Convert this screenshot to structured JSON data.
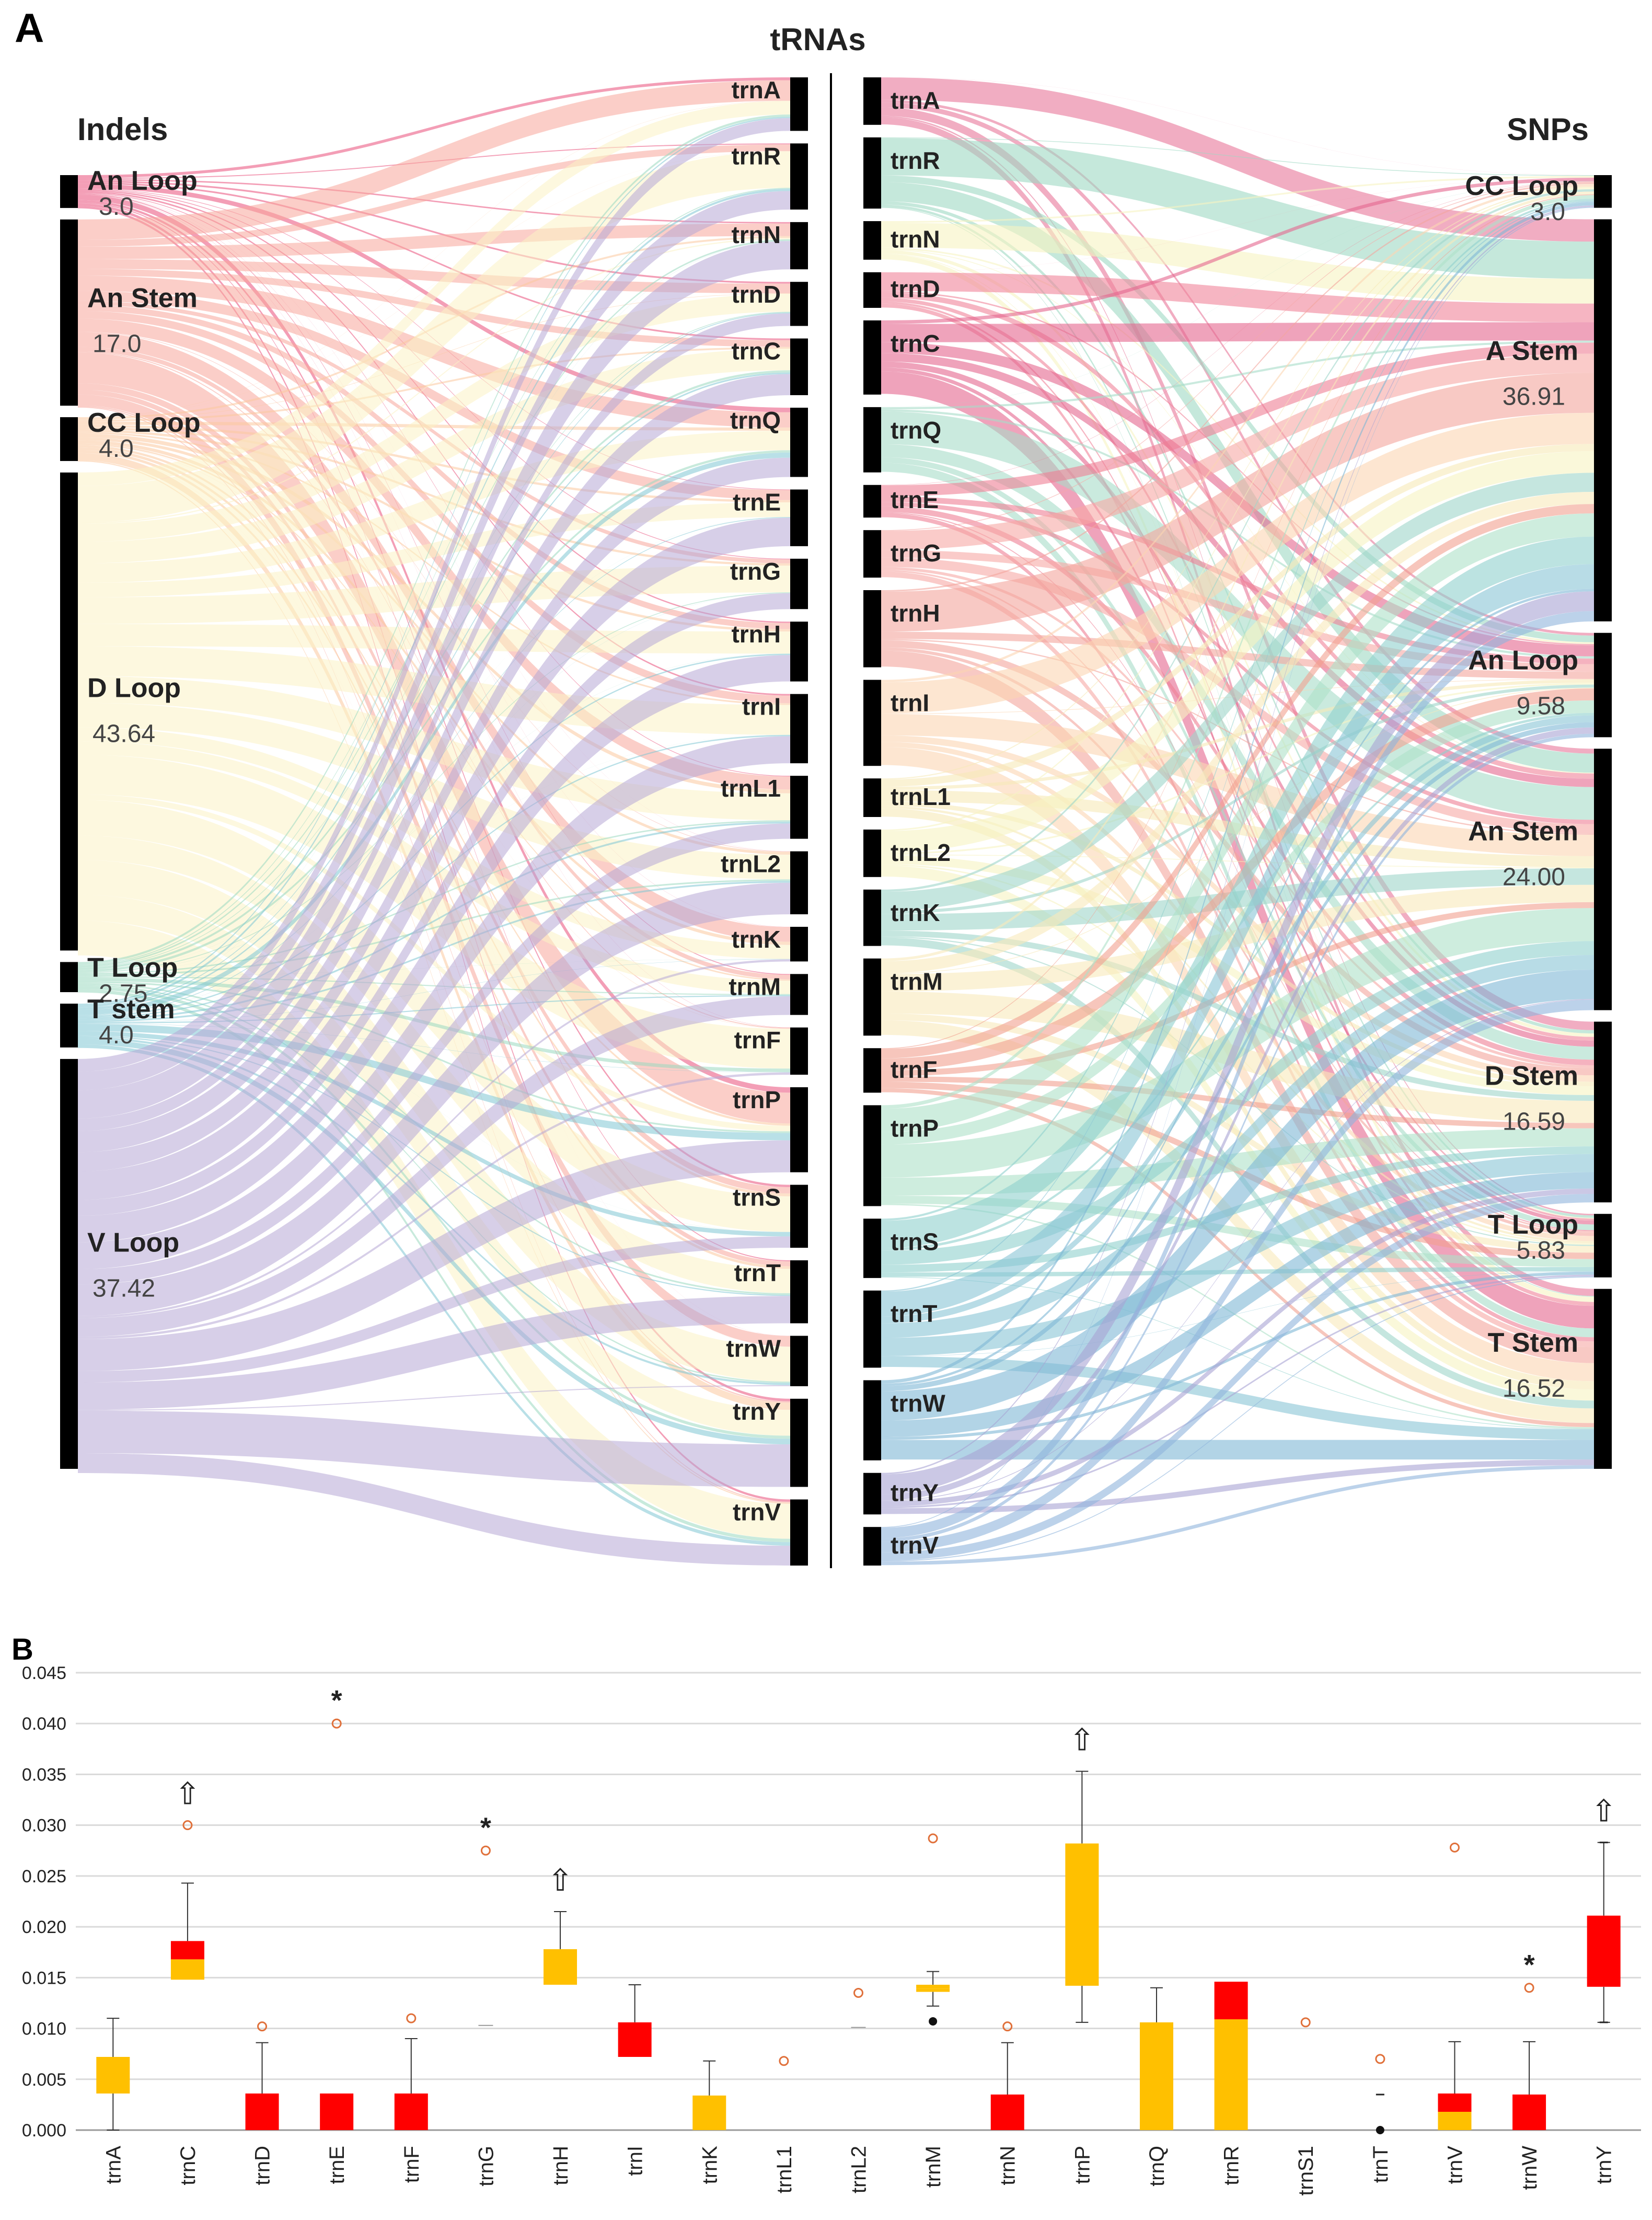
{
  "panel_a": {
    "letter": "A",
    "title_center": "tRNAs",
    "title_left": "Indels",
    "title_right": "SNPs"
  },
  "panel_b": {
    "letter": "B"
  },
  "colors": {
    "genes": {
      "trnA": "#e8779a",
      "trnR": "#9fd8c3",
      "trnN": "#f7f3c2",
      "trnD": "#f0839a",
      "trnC": "#e4668e",
      "trnQ": "#a6dcc8",
      "trnE": "#ef7f95",
      "trnG": "#f7a8a5",
      "trnH": "#f4a59c",
      "trnI": "#fbd6b2",
      "trnL1": "#f6e9b8",
      "trnL2": "#f7f3c2",
      "trnK": "#9fd6c9",
      "trnM": "#f8e9bb",
      "trnF": "#f2a08f",
      "trnP": "#ade1c8",
      "trnS": "#8fd0cd",
      "trnT": "#88c4d6",
      "trnW": "#7fb8d6",
      "trnY": "#a9a3d4",
      "trnV": "#8fb4dc"
    },
    "box_yellow": "#ffc000",
    "box_red": "#ff0000",
    "outlier": "#e0703a"
  },
  "chart_data": [
    {
      "type": "sankey",
      "title": "tRNAs",
      "left_title": "Indels",
      "right_title": "SNPs",
      "center_nodes_indels": [
        "trnA",
        "trnR",
        "trnN",
        "trnD",
        "trnC",
        "trnQ",
        "trnE",
        "trnG",
        "trnH",
        "trnI",
        "trnL1",
        "trnL2",
        "trnK",
        "trnM",
        "trnF",
        "trnP",
        "trnS",
        "trnT",
        "trnW",
        "trnY",
        "trnV"
      ],
      "center_weights_indels": [
        1.7,
        2.1,
        1.5,
        1.4,
        1.8,
        2.2,
        1.8,
        1.6,
        1.9,
        2.2,
        2.0,
        2.0,
        1.1,
        1.3,
        1.5,
        2.7,
        2.0,
        2.0,
        1.6,
        2.8,
        2.1
      ],
      "center_nodes_snps": [
        "trnA",
        "trnR",
        "trnN",
        "trnD",
        "trnC",
        "trnQ",
        "trnE",
        "trnG",
        "trnH",
        "trnI",
        "trnL1",
        "trnL2",
        "trnK",
        "trnM",
        "trnF",
        "trnP",
        "trnS",
        "trnT",
        "trnW",
        "trnY",
        "trnV"
      ],
      "center_weights_snps": [
        1.6,
        2.4,
        1.3,
        1.2,
        2.5,
        2.2,
        1.1,
        1.6,
        2.6,
        2.9,
        1.3,
        1.6,
        1.9,
        2.6,
        1.5,
        3.4,
        2.0,
        2.6,
        2.7,
        1.4,
        1.3
      ],
      "left_nodes": [
        {
          "label": "An Loop",
          "value": "3.0",
          "pct": 3.0,
          "color": "#e94f7a"
        },
        {
          "label": "An Stem",
          "value": "17.0",
          "pct": 17.0,
          "color": "#f8a69b"
        },
        {
          "label": "CC Loop",
          "value": "4.0",
          "pct": 4.0,
          "color": "#fbc89e"
        },
        {
          "label": "D Loop",
          "value": "43.64",
          "pct": 43.64,
          "color": "#fbf3c5"
        },
        {
          "label": "T Loop",
          "value": "2.75",
          "pct": 2.75,
          "color": "#9ad9c0"
        },
        {
          "label": "T stem",
          "value": "4.0",
          "pct": 4.0,
          "color": "#7fc7d3"
        },
        {
          "label": "V Loop",
          "value": "37.42",
          "pct": 37.42,
          "color": "#b6a7d6"
        }
      ],
      "right_nodes": [
        {
          "label": "CC Loop",
          "value": "3.0",
          "pct": 3.0,
          "color": "#7fb3d9"
        },
        {
          "label": "A Stem",
          "value": "36.91",
          "pct": 36.91,
          "color": "#fbd0a8"
        },
        {
          "label": "An Loop",
          "value": "9.58",
          "pct": 9.58,
          "color": "#e9628a"
        },
        {
          "label": "An Stem",
          "value": "24.00",
          "pct": 24.0,
          "color": "#f9b09e"
        },
        {
          "label": "D Stem",
          "value": "16.59",
          "pct": 16.59,
          "color": "#fbd8b1"
        },
        {
          "label": "T Loop",
          "value": "5.83",
          "pct": 5.83,
          "color": "#a5dac6"
        },
        {
          "label": "T Stem",
          "value": "16.52",
          "pct": 16.52,
          "color": "#9fb9dc"
        }
      ]
    },
    {
      "type": "box",
      "title": "",
      "xlabel": "",
      "ylabel": "",
      "ylim": [
        0,
        0.045
      ],
      "yticks": [
        0.0,
        0.005,
        0.01,
        0.015,
        0.02,
        0.025,
        0.03,
        0.035,
        0.04,
        0.045
      ],
      "ytick_labels": [
        "0.000",
        "0.005",
        "0.010",
        "0.015",
        "0.020",
        "0.025",
        "0.030",
        "0.035",
        "0.040",
        "0.045"
      ],
      "categories": [
        "trnA",
        "trnC",
        "trnD",
        "trnE",
        "trnF",
        "trnG",
        "trnH",
        "trnI",
        "trnK",
        "trnL1",
        "trnL2",
        "trnM",
        "trnN",
        "trnP",
        "trnQ",
        "trnR",
        "trnS1",
        "trnT",
        "trnV",
        "trnW",
        "trnY"
      ],
      "boxes": [
        {
          "q1": 0.0036,
          "median": 0.0072,
          "q3": 0.0072,
          "wlow": 0.0,
          "whigh": 0.011,
          "lower_color": "yellow",
          "upper_color": "yellow",
          "outliers": [],
          "mark": ""
        },
        {
          "q1": 0.0148,
          "median": 0.0168,
          "q3": 0.0186,
          "wlow": 0.0148,
          "whigh": 0.0243,
          "lower_color": "yellow",
          "upper_color": "red",
          "outliers": [
            0.03
          ],
          "mark": "arrow"
        },
        {
          "q1": 0.0,
          "median": 0.0036,
          "q3": 0.0036,
          "wlow": 0.0,
          "whigh": 0.0086,
          "lower_color": "red",
          "upper_color": "red",
          "outliers": [
            0.0102
          ],
          "mark": ""
        },
        {
          "q1": 0.0,
          "median": 0.0036,
          "q3": 0.0036,
          "wlow": 0.0,
          "whigh": 0.0,
          "lower_color": "red",
          "upper_color": "red",
          "outliers": [
            0.04
          ],
          "mark": "star"
        },
        {
          "q1": 0.0,
          "median": 0.0036,
          "q3": 0.0036,
          "wlow": 0.0,
          "whigh": 0.009,
          "lower_color": "red",
          "upper_color": "red",
          "outliers": [
            0.011
          ],
          "mark": ""
        },
        {
          "q1": 0.0103,
          "median": 0.0103,
          "q3": 0.0103,
          "wlow": 0.0103,
          "whigh": 0.0103,
          "lower_color": "yellow",
          "upper_color": "yellow",
          "outliers": [
            0.0275
          ],
          "mark": "star"
        },
        {
          "q1": 0.0143,
          "median": 0.0178,
          "q3": 0.0178,
          "wlow": 0.0143,
          "whigh": 0.0215,
          "lower_color": "yellow",
          "upper_color": "yellow",
          "outliers": [],
          "mark": "arrow"
        },
        {
          "q1": 0.0072,
          "median": 0.0106,
          "q3": 0.0106,
          "wlow": 0.0072,
          "whigh": 0.0143,
          "lower_color": "red",
          "upper_color": "red",
          "outliers": [],
          "mark": ""
        },
        {
          "q1": 0.0,
          "median": 0.0034,
          "q3": 0.0034,
          "wlow": 0.0,
          "whigh": 0.0068,
          "lower_color": "yellow",
          "upper_color": "yellow",
          "outliers": [],
          "mark": ""
        },
        {
          "q1": 0.0,
          "median": 0.0,
          "q3": 0.0,
          "wlow": 0.0,
          "whigh": 0.0,
          "lower_color": "yellow",
          "upper_color": "yellow",
          "outliers": [
            0.0068
          ],
          "mark": ""
        },
        {
          "q1": 0.0101,
          "median": 0.0101,
          "q3": 0.0101,
          "wlow": 0.0101,
          "whigh": 0.0101,
          "lower_color": "yellow",
          "upper_color": "yellow",
          "outliers": [
            0.0135
          ],
          "mark": ""
        },
        {
          "q1": 0.0136,
          "median": 0.0139,
          "q3": 0.0143,
          "wlow": 0.0122,
          "whigh": 0.0156,
          "lower_color": "yellow",
          "upper_color": "yellow",
          "outliers": [
            0.0287
          ],
          "mark": ""
        },
        {
          "q1": 0.0,
          "median": 0.0035,
          "q3": 0.0035,
          "wlow": 0.0,
          "whigh": 0.0086,
          "lower_color": "red",
          "upper_color": "red",
          "outliers": [
            0.0102
          ],
          "mark": ""
        },
        {
          "q1": 0.0142,
          "median": 0.0282,
          "q3": 0.0282,
          "wlow": 0.0106,
          "whigh": 0.0353,
          "lower_color": "yellow",
          "upper_color": "yellow",
          "outliers": [],
          "mark": "arrow"
        },
        {
          "q1": 0.0,
          "median": 0.0106,
          "q3": 0.0106,
          "wlow": 0.0,
          "whigh": 0.014,
          "lower_color": "yellow",
          "upper_color": "yellow",
          "outliers": [],
          "mark": ""
        },
        {
          "q1": 0.0,
          "median": 0.0109,
          "q3": 0.0146,
          "wlow": 0.0,
          "whigh": 0.0146,
          "lower_color": "yellow",
          "upper_color": "red",
          "outliers": [],
          "mark": ""
        },
        {
          "q1": 0.0,
          "median": 0.0,
          "q3": 0.0,
          "wlow": 0.0,
          "whigh": 0.0,
          "lower_color": "yellow",
          "upper_color": "yellow",
          "outliers": [
            0.0106
          ],
          "mark": ""
        },
        {
          "q1": 0.0,
          "median": 0.0,
          "q3": 0.0,
          "wlow": 0.0,
          "whigh": 0.0,
          "lower_color": "yellow",
          "upper_color": "yellow",
          "outliers": [
            0.007
          ],
          "mark": ""
        },
        {
          "q1": 0.0,
          "median": 0.0018,
          "q3": 0.0036,
          "wlow": 0.0,
          "whigh": 0.0087,
          "lower_color": "yellow",
          "upper_color": "red",
          "outliers": [
            0.0278
          ],
          "mark": ""
        },
        {
          "q1": 0.0,
          "median": 0.0035,
          "q3": 0.0035,
          "wlow": 0.0,
          "whigh": 0.0087,
          "lower_color": "red",
          "upper_color": "red",
          "outliers": [
            0.014
          ],
          "mark": "star"
        },
        {
          "q1": 0.0141,
          "median": 0.0211,
          "q3": 0.0211,
          "wlow": 0.0106,
          "whigh": 0.0283,
          "lower_color": "red",
          "upper_color": "red",
          "outliers": [],
          "mark": "arrow"
        }
      ],
      "filled_dots": [
        {
          "category": "trnM",
          "value": 0.0107
        },
        {
          "category": "trnT",
          "value": 0.0
        }
      ],
      "dash_marks": [
        {
          "category": "trnT",
          "value": 0.0035
        },
        {
          "category": "trnY",
          "value": 0.0283
        },
        {
          "category": "trnY",
          "value": 0.0106
        }
      ],
      "annotations": {
        "star": "*",
        "arrow": "⇧"
      }
    }
  ]
}
